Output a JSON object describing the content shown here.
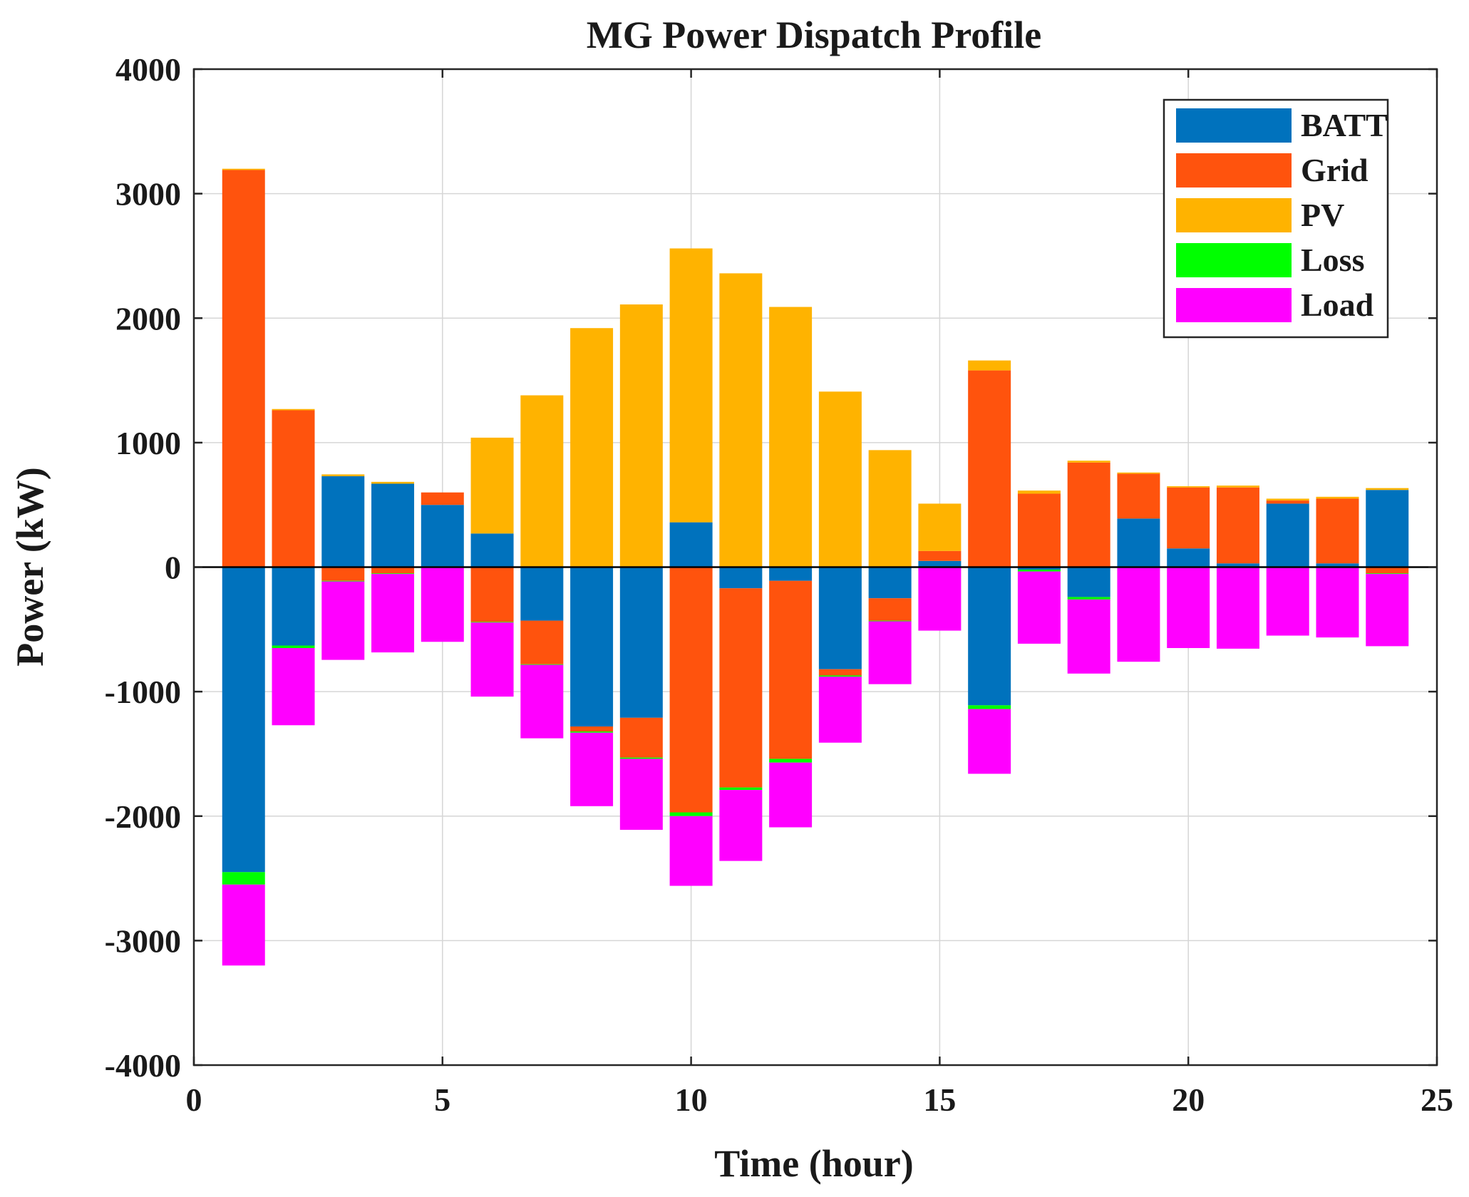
{
  "chart_data": {
    "type": "bar",
    "stacked": true,
    "title": "MG Power Dispatch Profile",
    "xlabel": "Time (hour)",
    "ylabel": "Power (kW)",
    "xlim": [
      0,
      25
    ],
    "ylim": [
      -4000,
      4000
    ],
    "xticks": [
      0,
      5,
      10,
      15,
      20,
      25
    ],
    "yticks": [
      -4000,
      -3000,
      -2000,
      -1000,
      0,
      1000,
      2000,
      3000,
      4000
    ],
    "x": [
      1,
      2,
      3,
      4,
      5,
      6,
      7,
      8,
      9,
      10,
      11,
      12,
      13,
      14,
      15,
      16,
      17,
      18,
      19,
      20,
      21,
      22,
      23,
      24
    ],
    "grid": true,
    "legend_position": "top-right",
    "series": [
      {
        "name": "BATT",
        "color": "#0072BD",
        "values": [
          -2450,
          -630,
          730,
          670,
          500,
          270,
          -430,
          -1280,
          -1210,
          360,
          -170,
          -110,
          -820,
          -250,
          50,
          -1110,
          -20,
          -240,
          390,
          150,
          30,
          510,
          30,
          620
        ]
      },
      {
        "name": "Grid",
        "color": "#FF530D",
        "values": [
          3190,
          1260,
          -110,
          -50,
          100,
          -440,
          -350,
          -40,
          -320,
          -1970,
          -1600,
          -1430,
          -50,
          -180,
          80,
          1580,
          590,
          840,
          360,
          490,
          610,
          25,
          520,
          -50
        ]
      },
      {
        "name": "PV",
        "color": "#FFB300",
        "values": [
          10,
          10,
          15,
          15,
          0,
          770,
          1380,
          1920,
          2110,
          2200,
          2360,
          2090,
          1410,
          940,
          380,
          80,
          25,
          15,
          10,
          10,
          15,
          15,
          15,
          15
        ]
      },
      {
        "name": "Loss",
        "color": "#00FF00",
        "values": [
          -100,
          -20,
          -5,
          -5,
          -3,
          -5,
          -5,
          -10,
          -10,
          -30,
          -20,
          -30,
          -10,
          -5,
          -3,
          -30,
          -15,
          -20,
          -5,
          -5,
          -5,
          -5,
          -5,
          -5
        ]
      },
      {
        "name": "Load",
        "color": "#FF00FF",
        "values": [
          -650,
          -620,
          -630,
          -630,
          -597,
          -595,
          -590,
          -590,
          -570,
          -560,
          -570,
          -520,
          -530,
          -505,
          -507,
          -520,
          -580,
          -595,
          -755,
          -645,
          -650,
          -545,
          -560,
          -580
        ]
      }
    ]
  }
}
